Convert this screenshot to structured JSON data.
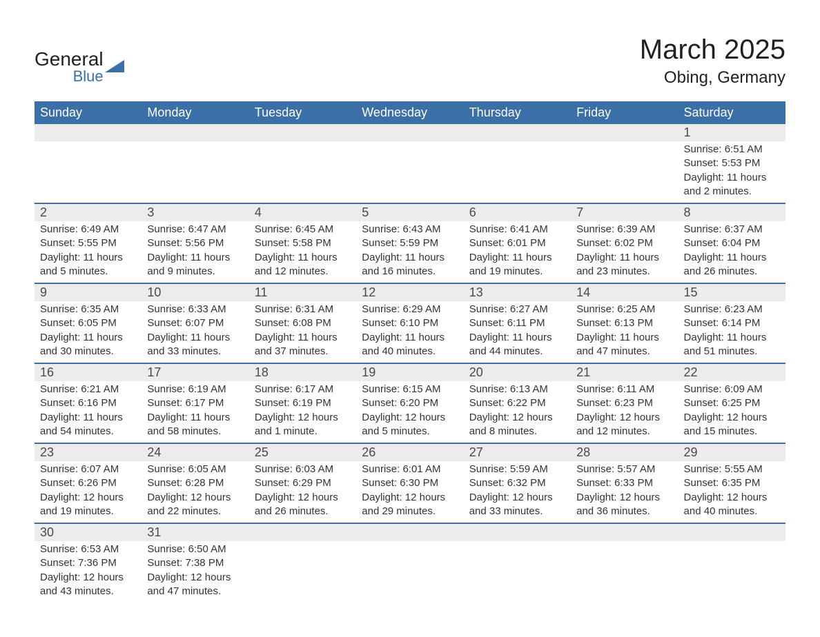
{
  "logo": {
    "general": "General",
    "blue": "Blue",
    "triangle_color": "#3b6fa8"
  },
  "title": {
    "month": "March 2025",
    "location": "Obing, Germany"
  },
  "styling": {
    "header_bg": "#3b6fa8",
    "header_text": "#ffffff",
    "daynum_bg": "#ececec",
    "row_border": "#3b6fa8",
    "body_text": "#333333",
    "title_text": "#231f20",
    "page_bg": "#ffffff",
    "font_family": "Arial",
    "th_fontsize": 18,
    "daynum_fontsize": 18,
    "body_fontsize": 15,
    "title_fontsize": 40,
    "location_fontsize": 24
  },
  "weekdays": [
    "Sunday",
    "Monday",
    "Tuesday",
    "Wednesday",
    "Thursday",
    "Friday",
    "Saturday"
  ],
  "weeks": [
    [
      null,
      null,
      null,
      null,
      null,
      null,
      {
        "day": "1",
        "sunrise": "6:51 AM",
        "sunset": "5:53 PM",
        "daylight": "11 hours and 2 minutes."
      }
    ],
    [
      {
        "day": "2",
        "sunrise": "6:49 AM",
        "sunset": "5:55 PM",
        "daylight": "11 hours and 5 minutes."
      },
      {
        "day": "3",
        "sunrise": "6:47 AM",
        "sunset": "5:56 PM",
        "daylight": "11 hours and 9 minutes."
      },
      {
        "day": "4",
        "sunrise": "6:45 AM",
        "sunset": "5:58 PM",
        "daylight": "11 hours and 12 minutes."
      },
      {
        "day": "5",
        "sunrise": "6:43 AM",
        "sunset": "5:59 PM",
        "daylight": "11 hours and 16 minutes."
      },
      {
        "day": "6",
        "sunrise": "6:41 AM",
        "sunset": "6:01 PM",
        "daylight": "11 hours and 19 minutes."
      },
      {
        "day": "7",
        "sunrise": "6:39 AM",
        "sunset": "6:02 PM",
        "daylight": "11 hours and 23 minutes."
      },
      {
        "day": "8",
        "sunrise": "6:37 AM",
        "sunset": "6:04 PM",
        "daylight": "11 hours and 26 minutes."
      }
    ],
    [
      {
        "day": "9",
        "sunrise": "6:35 AM",
        "sunset": "6:05 PM",
        "daylight": "11 hours and 30 minutes."
      },
      {
        "day": "10",
        "sunrise": "6:33 AM",
        "sunset": "6:07 PM",
        "daylight": "11 hours and 33 minutes."
      },
      {
        "day": "11",
        "sunrise": "6:31 AM",
        "sunset": "6:08 PM",
        "daylight": "11 hours and 37 minutes."
      },
      {
        "day": "12",
        "sunrise": "6:29 AM",
        "sunset": "6:10 PM",
        "daylight": "11 hours and 40 minutes."
      },
      {
        "day": "13",
        "sunrise": "6:27 AM",
        "sunset": "6:11 PM",
        "daylight": "11 hours and 44 minutes."
      },
      {
        "day": "14",
        "sunrise": "6:25 AM",
        "sunset": "6:13 PM",
        "daylight": "11 hours and 47 minutes."
      },
      {
        "day": "15",
        "sunrise": "6:23 AM",
        "sunset": "6:14 PM",
        "daylight": "11 hours and 51 minutes."
      }
    ],
    [
      {
        "day": "16",
        "sunrise": "6:21 AM",
        "sunset": "6:16 PM",
        "daylight": "11 hours and 54 minutes."
      },
      {
        "day": "17",
        "sunrise": "6:19 AM",
        "sunset": "6:17 PM",
        "daylight": "11 hours and 58 minutes."
      },
      {
        "day": "18",
        "sunrise": "6:17 AM",
        "sunset": "6:19 PM",
        "daylight": "12 hours and 1 minute."
      },
      {
        "day": "19",
        "sunrise": "6:15 AM",
        "sunset": "6:20 PM",
        "daylight": "12 hours and 5 minutes."
      },
      {
        "day": "20",
        "sunrise": "6:13 AM",
        "sunset": "6:22 PM",
        "daylight": "12 hours and 8 minutes."
      },
      {
        "day": "21",
        "sunrise": "6:11 AM",
        "sunset": "6:23 PM",
        "daylight": "12 hours and 12 minutes."
      },
      {
        "day": "22",
        "sunrise": "6:09 AM",
        "sunset": "6:25 PM",
        "daylight": "12 hours and 15 minutes."
      }
    ],
    [
      {
        "day": "23",
        "sunrise": "6:07 AM",
        "sunset": "6:26 PM",
        "daylight": "12 hours and 19 minutes."
      },
      {
        "day": "24",
        "sunrise": "6:05 AM",
        "sunset": "6:28 PM",
        "daylight": "12 hours and 22 minutes."
      },
      {
        "day": "25",
        "sunrise": "6:03 AM",
        "sunset": "6:29 PM",
        "daylight": "12 hours and 26 minutes."
      },
      {
        "day": "26",
        "sunrise": "6:01 AM",
        "sunset": "6:30 PM",
        "daylight": "12 hours and 29 minutes."
      },
      {
        "day": "27",
        "sunrise": "5:59 AM",
        "sunset": "6:32 PM",
        "daylight": "12 hours and 33 minutes."
      },
      {
        "day": "28",
        "sunrise": "5:57 AM",
        "sunset": "6:33 PM",
        "daylight": "12 hours and 36 minutes."
      },
      {
        "day": "29",
        "sunrise": "5:55 AM",
        "sunset": "6:35 PM",
        "daylight": "12 hours and 40 minutes."
      }
    ],
    [
      {
        "day": "30",
        "sunrise": "6:53 AM",
        "sunset": "7:36 PM",
        "daylight": "12 hours and 43 minutes."
      },
      {
        "day": "31",
        "sunrise": "6:50 AM",
        "sunset": "7:38 PM",
        "daylight": "12 hours and 47 minutes."
      },
      null,
      null,
      null,
      null,
      null
    ]
  ],
  "labels": {
    "sunrise": "Sunrise:",
    "sunset": "Sunset:",
    "daylight": "Daylight:"
  }
}
